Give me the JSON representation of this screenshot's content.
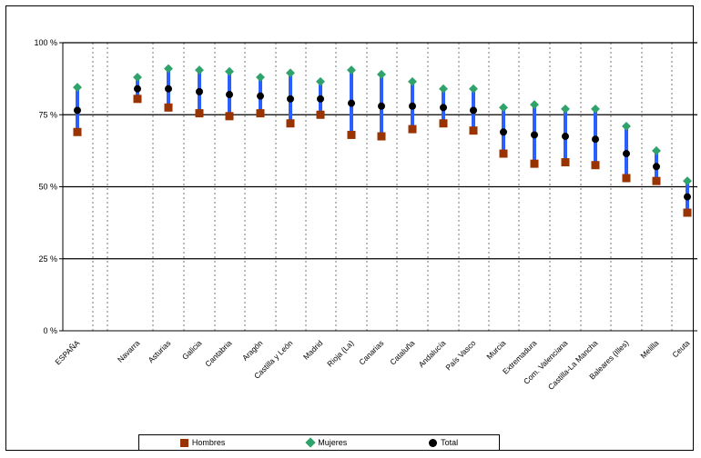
{
  "chart_data": {
    "type": "scatter",
    "title": "",
    "xlabel": "",
    "ylabel": "",
    "ylim": [
      0,
      100
    ],
    "yticks": [
      "0 %",
      "25 %",
      "50 %",
      "75 %",
      "100 %"
    ],
    "ytick_values": [
      0,
      25,
      50,
      75,
      100
    ],
    "grid": "horizontal solid, vertical dashed",
    "legend": "bottom",
    "categories": [
      "ESPAÑA",
      "Navarra",
      "Asturias",
      "Galicia",
      "Cantabria",
      "Aragón",
      "Castilla y León",
      "Madrid",
      "Rioja (La)",
      "Canarias",
      "Cataluña",
      "Andalucía",
      "País Vasco",
      "Murcia",
      "Extremadura",
      "Com. Valenciana",
      "Castilla-La Mancha",
      "Baleares (Illes)",
      "Melilla",
      "Ceuta"
    ],
    "series": [
      {
        "name": "Hombres",
        "marker": "square",
        "color": "#993300",
        "values": [
          69,
          80.5,
          77.5,
          75.5,
          74.5,
          75.5,
          72,
          75,
          68,
          67.5,
          70,
          72,
          69.5,
          61.5,
          58,
          58.5,
          57.5,
          53,
          52,
          41
        ]
      },
      {
        "name": "Mujeres",
        "marker": "diamond",
        "color": "#2fa36b",
        "values": [
          84.5,
          88,
          91,
          90.5,
          90,
          88,
          89.5,
          86.5,
          90.5,
          89,
          86.5,
          84,
          84,
          77.5,
          78.5,
          77,
          77,
          71,
          62.5,
          52
        ]
      },
      {
        "name": "Total",
        "marker": "dot",
        "color": "#000000",
        "values": [
          76.5,
          84,
          84,
          83,
          82,
          81.5,
          80.5,
          80.5,
          79,
          78,
          78,
          77.5,
          76.5,
          69,
          68,
          67.5,
          66.5,
          61.5,
          57,
          46.5
        ]
      }
    ],
    "range_bar_color": "#2b5fff"
  }
}
